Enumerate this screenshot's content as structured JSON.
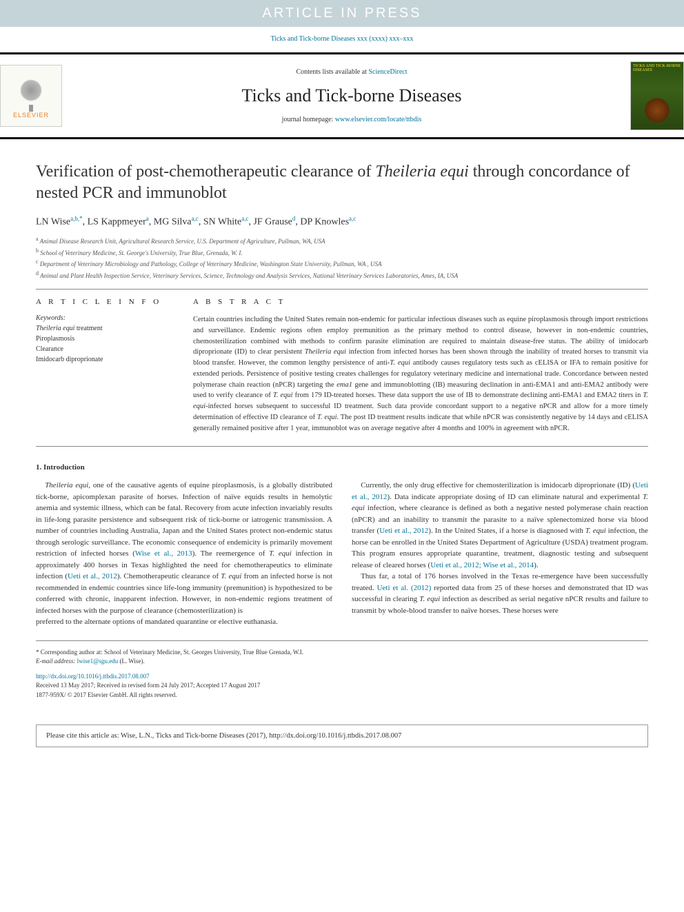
{
  "banner": {
    "text": "ARTICLE IN PRESS"
  },
  "citationTop": "Ticks and Tick-borne Diseases xxx (xxxx) xxx–xxx",
  "header": {
    "contentsPrefix": "Contents lists available at ",
    "contentsLink": "ScienceDirect",
    "journalName": "Ticks and Tick-borne Diseases",
    "homepagePrefix": "journal homepage: ",
    "homepageLink": "www.elsevier.com/locate/ttbdis",
    "publisher": "ELSEVIER",
    "coverTitle": "TICKS AND TICK-BORNE DISEASES"
  },
  "title": "Verification of post-chemotherapeutic clearance of <em>Theileria equi</em> through concordance of nested PCR and immunoblot",
  "authors": "LN Wise<sup><a>a</a>,<a>b</a>,*</sup>, LS Kappmeyer<sup><a>a</a></sup>, MG Silva<sup><a>a</a>,<a>c</a></sup>, SN White<sup><a>a</a>,<a>c</a></sup>, JF Grause<sup><a>d</a></sup>, DP Knowles<sup><a>a</a>,<a>c</a></sup>",
  "affiliations": [
    "<sup>a</sup> Animal Disease Research Unit, Agricultural Research Service, U.S. Department of Agriculture, Pullman, WA, USA",
    "<sup>b</sup> School of Veterinary Medicine, St. George's University, True Blue, Grenada, W. I.",
    "<sup>c</sup> Department of Veterinary Microbiology and Pathology, College of Veterinary Medicine, Washington State University, Pullman, WA , USA",
    "<sup>d</sup> Animal and Plant Health Inspection Service, Veterinary Services, Science, Technology and Analysis Services, National Veterinary Services Laboratories, Ames, IA, USA"
  ],
  "sections": {
    "infoHeading": "A R T I C L E   I N F O",
    "abstractHeading": "A B S T R A C T",
    "keywordsLabel": "Keywords:",
    "keywords": "<em>Theileria equi</em> treatment<br>Piroplasmosis<br>Clearance<br>Imidocarb diproprionate",
    "abstract": "Certain countries including the United States remain non-endemic for particular infectious diseases such as equine piroplasmosis through import restrictions and surveillance. Endemic regions often employ premunition as the primary method to control disease, however in non-endemic countries, chemosterilization combined with methods to confirm parasite elimination are required to maintain disease-free status. The ability of imidocarb diproprionate (ID) to clear persistent <em>Theileria equi</em> infection from infected horses has been shown through the inability of treated horses to transmit via blood transfer. However, the common lengthy persistence of anti-<em>T. equi</em> antibody causes regulatory tests such as cELISA or IFA to remain positive for extended periods. Persistence of positive testing creates challenges for regulatory veterinary medicine and international trade. Concordance between nested polymerase chain reaction (nPCR) targeting the <em>ema1</em> gene and immunoblotting (IB) measuring declination in anti-EMA1 and anti-EMA2 antibody were used to verify clearance of <em>T. equi</em> from 179 ID-treated horses. These data support the use of IB to demonstrate declining anti-EMA1 and EMA2 titers in <em>T. equi</em>-infected horses subsequent to successful ID treatment. Such data provide concordant support to a negative nPCR and allow for a more timely determination of effective ID clearance of <em>T. equi</em>. The post ID treatment results indicate that while nPCR was consistently negative by 14 days and cELISA generally remained positive after 1 year, immunoblot was on average negative after 4 months and 100% in agreement with nPCR."
  },
  "body": {
    "heading": "1. Introduction",
    "col1p1": "<em>Theileria equi</em>, one of the causative agents of equine piroplasmosis, is a globally distributed tick-borne, apicomplexan parasite of horses. Infection of naïve equids results in hemolytic anemia and systemic illness, which can be fatal. Recovery from acute infection invariably results in life-long parasite persistence and subsequent risk of tick-borne or iatrogenic transmission. A number of countries including Australia, Japan and the United States protect non-endemic status through serologic surveillance. The economic consequence of endemicity is primarily movement restriction of infected horses (<a>Wise et al., 2013</a>). The reemergence of <em>T. equi</em> infection in approximately 400 horses in Texas highlighted the need for chemotherapeutics to eliminate infection (<a>Ueti et al., 2012</a>). Chemotherapeutic clearance of <em>T. equi</em> from an infected horse is not recommended in endemic countries since life-long immunity (premunition) is hypothesized to be conferred with chronic, inapparent infection. However, in non-endemic regions treatment of infected horses with the purpose of clearance (chemosterilization) is",
    "col2p1": "preferred to the alternate options of mandated quarantine or elective euthanasia.",
    "col2p2": "Currently, the only drug effective for chemosterilization is imidocarb diproprionate (ID) (<a>Ueti et al., 2012</a>). Data indicate appropriate dosing of ID can eliminate natural and experimental <em>T. equi</em> infection, where clearance is defined as both a negative nested polymerase chain reaction (nPCR) and an inability to transmit the parasite to a naïve splenectomized horse via blood transfer (<a>Ueti et al., 2012</a>). In the United States, if a horse is diagnosed with <em>T. equi</em> infection, the horse can be enrolled in the United States Department of Agriculture (USDA) treatment program. This program ensures appropriate quarantine, treatment, diagnostic testing and subsequent release of cleared horses (<a>Ueti et al., 2012; Wise et al., 2014</a>).",
    "col2p3": "Thus far, a total of 176 horses involved in the Texas re-emergence have been successfully treated. <a>Ueti et al. (2012)</a> reported data from 25 of these horses and demonstrated that ID was successful in clearing <em>T. equi</em> infection as described as serial negative nPCR results and failure to transmit by whole-blood transfer to naïve horses. These horses were"
  },
  "footer": {
    "corresponding": "* Corresponding author at: School of Veterinary Medicine, St. Georges University, True Blue Grenada, W.I.",
    "emailLabel": "E-mail address: ",
    "email": "lwise1@sgu.edu",
    "emailSuffix": " (L. Wise).",
    "doi": "http://dx.doi.org/10.1016/j.ttbdis.2017.08.007",
    "received": "Received 13 May 2017; Received in revised form 24 July 2017; Accepted 17 August 2017",
    "copyright": "1877-959X/ © 2017 Elsevier GmbH. All rights reserved."
  },
  "citeBox": "Please cite this article as: Wise, L.N., Ticks and Tick-borne Diseases (2017), http://dx.doi.org/10.1016/j.ttbdis.2017.08.007",
  "colors": {
    "bannerBg": "#c5d4d9",
    "bannerText": "#ffffff",
    "link": "#007398",
    "text": "#333333",
    "border": "#888888"
  }
}
